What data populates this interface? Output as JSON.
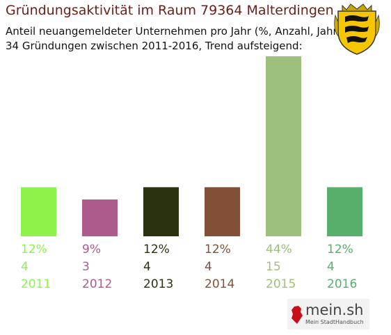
{
  "header": {
    "title": "Gründungsaktivität im Raum 79364 Malterdingen",
    "subtitle_1": "Anteil neuangemeldeter Unternehmen pro Jahr (%, Anzahl, Jahr)",
    "subtitle_2": "34 Gründungen zwischen 2011-2016, Trend aufsteigend:"
  },
  "crest": {
    "icon": "baden-wuerttemberg-coat-of-arms"
  },
  "logo": {
    "text": "mein.sh",
    "tagline": "Mein StadtHandbuch",
    "icon": "germany-map-pin-icon"
  },
  "chart_data": {
    "type": "bar",
    "title": "Gründungsaktivität im Raum 79364 Malterdingen",
    "categories": [
      "2011",
      "2012",
      "2013",
      "2014",
      "2015",
      "2016"
    ],
    "series": [
      {
        "values": [
          12,
          9,
          12,
          12,
          44,
          12
        ]
      }
    ],
    "counts": [
      4,
      3,
      4,
      4,
      15,
      4
    ],
    "percent_labels": [
      "12%",
      "9%",
      "12%",
      "12%",
      "44%",
      "12%"
    ],
    "count_labels": [
      "4",
      "3",
      "4",
      "4",
      "15",
      "4"
    ],
    "colors": [
      "#8ef24a",
      "#ad5a8d",
      "#2a3210",
      "#824f37",
      "#9dc07c",
      "#57af6b"
    ],
    "ylim": [
      0,
      44
    ],
    "grid": false,
    "legend": "none"
  }
}
